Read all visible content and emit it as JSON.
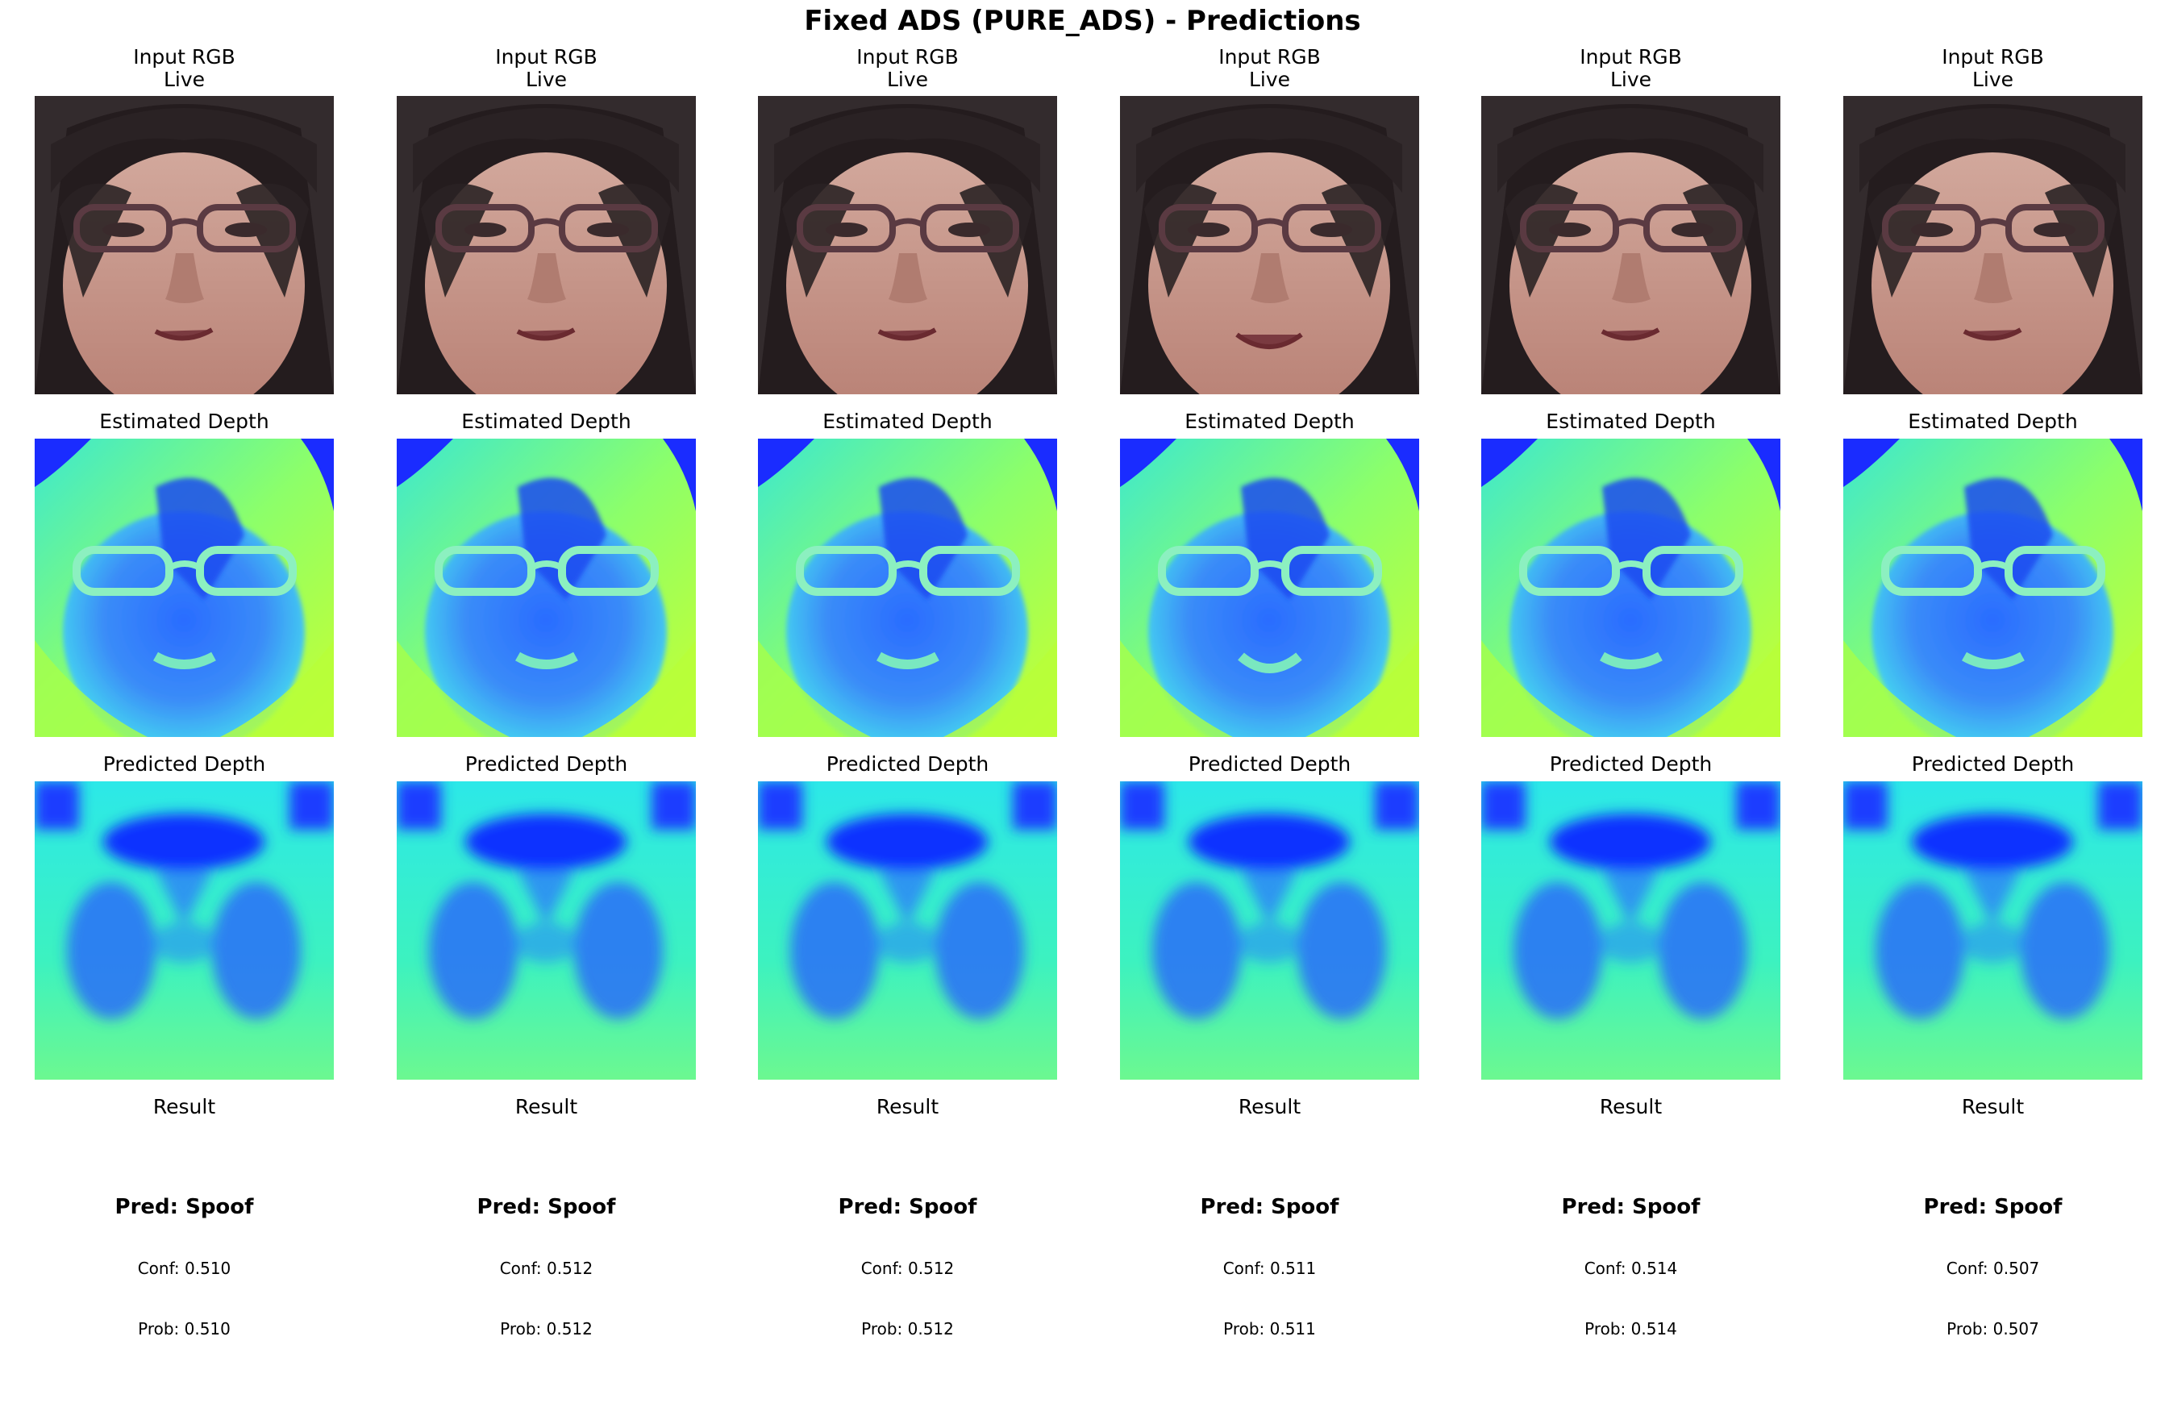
{
  "figure": {
    "title": "Fixed ADS (PURE_ADS) - Predictions"
  },
  "labels": {
    "input_line1": "Input RGB",
    "input_line2": "Live",
    "estimated": "Estimated Depth",
    "predicted": "Predicted Depth",
    "result": "Result"
  },
  "samples": [
    {
      "pred": "Pred: Spoof",
      "conf": "Conf: 0.510",
      "prob": "Prob: 0.510"
    },
    {
      "pred": "Pred: Spoof",
      "conf": "Conf: 0.512",
      "prob": "Prob: 0.512"
    },
    {
      "pred": "Pred: Spoof",
      "conf": "Conf: 0.512",
      "prob": "Prob: 0.512"
    },
    {
      "pred": "Pred: Spoof",
      "conf": "Conf: 0.511",
      "prob": "Prob: 0.511"
    },
    {
      "pred": "Pred: Spoof",
      "conf": "Conf: 0.514",
      "prob": "Prob: 0.514"
    },
    {
      "pred": "Pred: Spoof",
      "conf": "Conf: 0.507",
      "prob": "Prob: 0.507"
    }
  ],
  "colors": {
    "skin": "#c69a8e",
    "hair": "#2a2224",
    "glasses": "#5a3a42",
    "depth_low": "#1a3cff",
    "depth_mid": "#2ef0d8",
    "depth_high": "#b8ff40"
  }
}
